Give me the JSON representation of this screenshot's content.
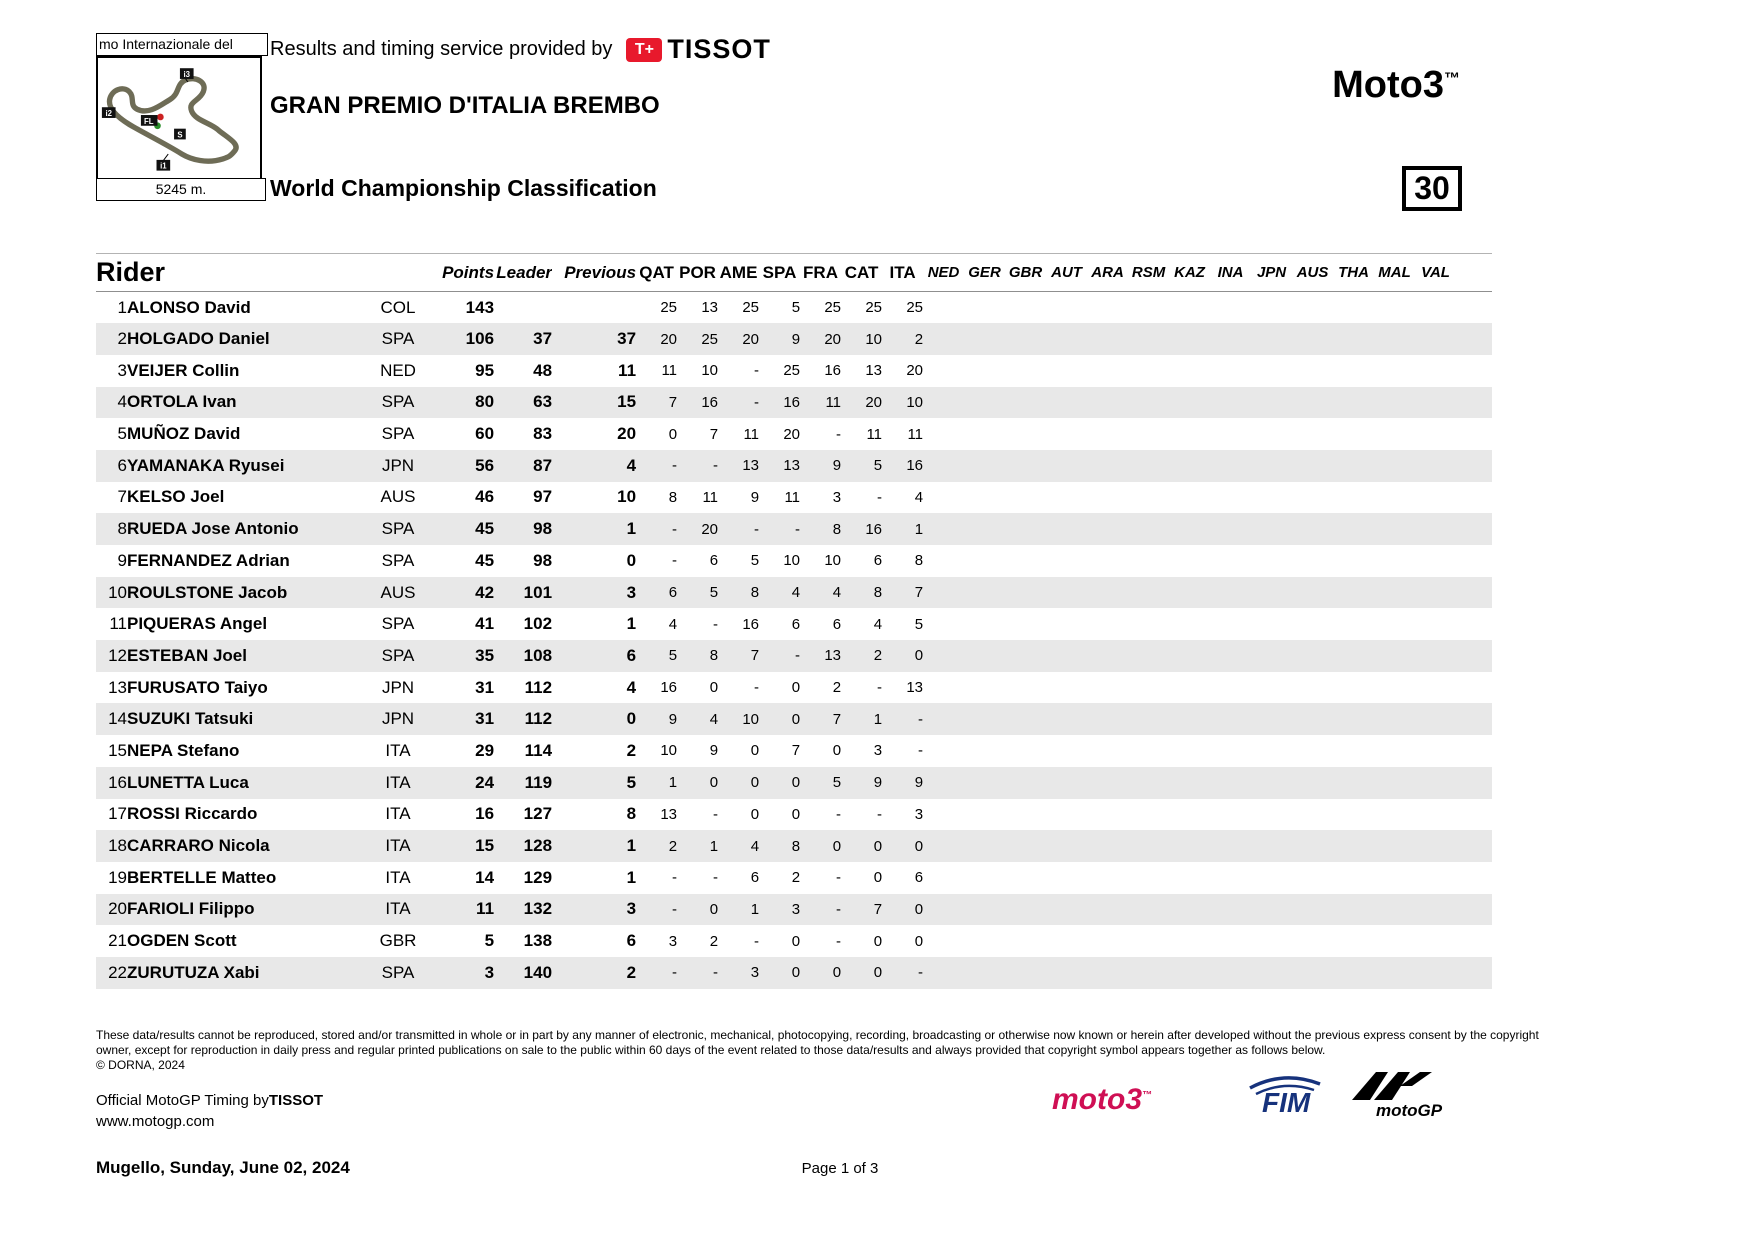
{
  "header": {
    "circuit_label": "mo Internazionale del",
    "track_length": "5245 m.",
    "provided_by": "Results and timing service provided by",
    "tissot_mark": "T+",
    "tissot": "TISSOT",
    "event_title": "GRAN PREMIO D'ITALIA BREMBO",
    "page_title": "World Championship Classification",
    "class_title": "Moto3",
    "trademark": "™",
    "race_number": "30"
  },
  "table": {
    "rider_col": "Rider",
    "summary_cols": [
      "Points",
      "Leader",
      "Previous"
    ],
    "completed_races": [
      "QAT",
      "POR",
      "AME",
      "SPA",
      "FRA",
      "CAT",
      "ITA"
    ],
    "future_races": [
      "NED",
      "GER",
      "GBR",
      "AUT",
      "ARA",
      "RSM",
      "KAZ",
      "INA",
      "JPN",
      "AUS",
      "THA",
      "MAL",
      "VAL"
    ],
    "rows": [
      {
        "pos": "1",
        "name": "ALONSO David",
        "nation": "COL",
        "points": "143",
        "leader": "",
        "previous": "",
        "scores": [
          "25",
          "13",
          "25",
          "5",
          "25",
          "25",
          "25"
        ]
      },
      {
        "pos": "2",
        "name": "HOLGADO Daniel",
        "nation": "SPA",
        "points": "106",
        "leader": "37",
        "previous": "37",
        "scores": [
          "20",
          "25",
          "20",
          "9",
          "20",
          "10",
          "2"
        ]
      },
      {
        "pos": "3",
        "name": "VEIJER Collin",
        "nation": "NED",
        "points": "95",
        "leader": "48",
        "previous": "11",
        "scores": [
          "11",
          "10",
          "-",
          "25",
          "16",
          "13",
          "20"
        ]
      },
      {
        "pos": "4",
        "name": "ORTOLA Ivan",
        "nation": "SPA",
        "points": "80",
        "leader": "63",
        "previous": "15",
        "scores": [
          "7",
          "16",
          "-",
          "16",
          "11",
          "20",
          "10"
        ]
      },
      {
        "pos": "5",
        "name": "MUÑOZ David",
        "nation": "SPA",
        "points": "60",
        "leader": "83",
        "previous": "20",
        "scores": [
          "0",
          "7",
          "11",
          "20",
          "-",
          "11",
          "11"
        ]
      },
      {
        "pos": "6",
        "name": "YAMANAKA Ryusei",
        "nation": "JPN",
        "points": "56",
        "leader": "87",
        "previous": "4",
        "scores": [
          "-",
          "-",
          "13",
          "13",
          "9",
          "5",
          "16"
        ]
      },
      {
        "pos": "7",
        "name": "KELSO Joel",
        "nation": "AUS",
        "points": "46",
        "leader": "97",
        "previous": "10",
        "scores": [
          "8",
          "11",
          "9",
          "11",
          "3",
          "-",
          "4"
        ]
      },
      {
        "pos": "8",
        "name": "RUEDA Jose Antonio",
        "nation": "SPA",
        "points": "45",
        "leader": "98",
        "previous": "1",
        "scores": [
          "-",
          "20",
          "-",
          "-",
          "8",
          "16",
          "1"
        ]
      },
      {
        "pos": "9",
        "name": "FERNANDEZ Adrian",
        "nation": "SPA",
        "points": "45",
        "leader": "98",
        "previous": "0",
        "scores": [
          "-",
          "6",
          "5",
          "10",
          "10",
          "6",
          "8"
        ]
      },
      {
        "pos": "10",
        "name": "ROULSTONE Jacob",
        "nation": "AUS",
        "points": "42",
        "leader": "101",
        "previous": "3",
        "scores": [
          "6",
          "5",
          "8",
          "4",
          "4",
          "8",
          "7"
        ]
      },
      {
        "pos": "11",
        "name": "PIQUERAS Angel",
        "nation": "SPA",
        "points": "41",
        "leader": "102",
        "previous": "1",
        "scores": [
          "4",
          "-",
          "16",
          "6",
          "6",
          "4",
          "5"
        ]
      },
      {
        "pos": "12",
        "name": "ESTEBAN Joel",
        "nation": "SPA",
        "points": "35",
        "leader": "108",
        "previous": "6",
        "scores": [
          "5",
          "8",
          "7",
          "-",
          "13",
          "2",
          "0"
        ]
      },
      {
        "pos": "13",
        "name": "FURUSATO Taiyo",
        "nation": "JPN",
        "points": "31",
        "leader": "112",
        "previous": "4",
        "scores": [
          "16",
          "0",
          "-",
          "0",
          "2",
          "-",
          "13"
        ]
      },
      {
        "pos": "14",
        "name": "SUZUKI Tatsuki",
        "nation": "JPN",
        "points": "31",
        "leader": "112",
        "previous": "0",
        "scores": [
          "9",
          "4",
          "10",
          "0",
          "7",
          "1",
          "-"
        ]
      },
      {
        "pos": "15",
        "name": "NEPA Stefano",
        "nation": "ITA",
        "points": "29",
        "leader": "114",
        "previous": "2",
        "scores": [
          "10",
          "9",
          "0",
          "7",
          "0",
          "3",
          "-"
        ]
      },
      {
        "pos": "16",
        "name": "LUNETTA Luca",
        "nation": "ITA",
        "points": "24",
        "leader": "119",
        "previous": "5",
        "scores": [
          "1",
          "0",
          "0",
          "0",
          "5",
          "9",
          "9"
        ]
      },
      {
        "pos": "17",
        "name": "ROSSI Riccardo",
        "nation": "ITA",
        "points": "16",
        "leader": "127",
        "previous": "8",
        "scores": [
          "13",
          "-",
          "0",
          "0",
          "-",
          "-",
          "3"
        ]
      },
      {
        "pos": "18",
        "name": "CARRARO Nicola",
        "nation": "ITA",
        "points": "15",
        "leader": "128",
        "previous": "1",
        "scores": [
          "2",
          "1",
          "4",
          "8",
          "0",
          "0",
          "0"
        ]
      },
      {
        "pos": "19",
        "name": "BERTELLE Matteo",
        "nation": "ITA",
        "points": "14",
        "leader": "129",
        "previous": "1",
        "scores": [
          "-",
          "-",
          "6",
          "2",
          "-",
          "0",
          "6"
        ]
      },
      {
        "pos": "20",
        "name": "FARIOLI Filippo",
        "nation": "ITA",
        "points": "11",
        "leader": "132",
        "previous": "3",
        "scores": [
          "-",
          "0",
          "1",
          "3",
          "-",
          "7",
          "0"
        ]
      },
      {
        "pos": "21",
        "name": "OGDEN Scott",
        "nation": "GBR",
        "points": "5",
        "leader": "138",
        "previous": "6",
        "scores": [
          "3",
          "2",
          "-",
          "0",
          "-",
          "0",
          "0"
        ]
      },
      {
        "pos": "22",
        "name": "ZURUTUZA Xabi",
        "nation": "SPA",
        "points": "3",
        "leader": "140",
        "previous": "2",
        "scores": [
          "-",
          "-",
          "3",
          "0",
          "0",
          "0",
          "-"
        ]
      }
    ]
  },
  "footer": {
    "disclaimer_line1": "These data/results cannot be reproduced, stored and/or transmitted in whole or in part by any manner of electronic, mechanical, photocopying, recording, broadcasting or otherwise now known or herein after developed without the previous express consent by the copyright",
    "disclaimer_line2": "owner, except for reproduction in daily press and regular printed publications on sale to the public within 60 days of the event related to those data/results and always provided that copyright symbol appears together as follows below.",
    "copyright": "© DORNA, 2024",
    "timing_by": "Official MotoGP Timing by",
    "timing_brand": "TISSOT",
    "website": "www.motogp.com",
    "event_location_date": "Mugello, Sunday, June 02, 2024",
    "page_indicator": "Page 1 of 3",
    "logos": {
      "moto3": "moto3",
      "moto3_tm": "™",
      "fim": "FIM",
      "motogp": "motoGP"
    }
  }
}
